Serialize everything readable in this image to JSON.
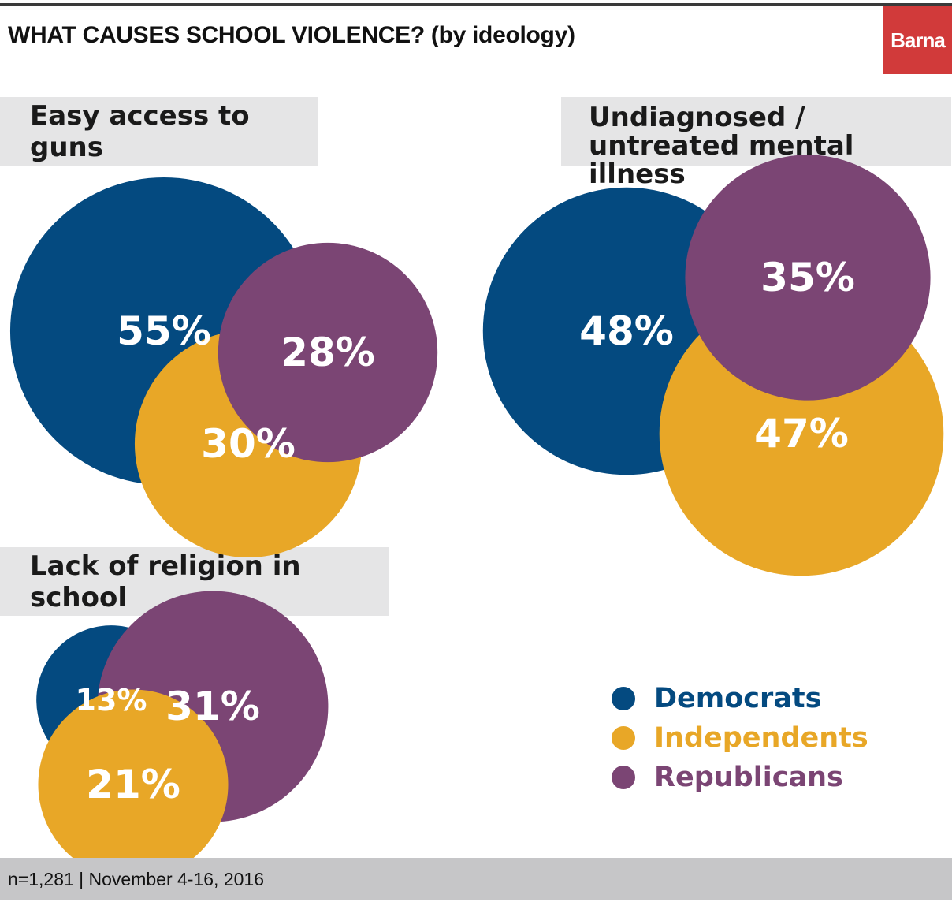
{
  "header": {
    "title": "WHAT CAUSES SCHOOL VIOLENCE?  (by ideology)",
    "logo": "Barna"
  },
  "footer": {
    "note": "n=1,281 | November 4-16, 2016"
  },
  "colors": {
    "Democrats": "#044a80",
    "Independents": "#e8a727",
    "Republicans": "#7b4574"
  },
  "legend": [
    {
      "label": "Democrats",
      "color": "#044a80"
    },
    {
      "label": "Independents",
      "color": "#e8a727"
    },
    {
      "label": "Republicans",
      "color": "#7b4574"
    }
  ],
  "chart_data": {
    "type": "bubble",
    "title": "WHAT CAUSES SCHOOL VIOLENCE?  (by ideology)",
    "series_names": [
      "Democrats",
      "Independents",
      "Republicans"
    ],
    "legend_position": "bottom-right",
    "groups": [
      {
        "label": "Easy access to guns",
        "values": {
          "Democrats": 55,
          "Independents": 30,
          "Republicans": 28
        }
      },
      {
        "label": "Undiagnosed / untreated mental illness",
        "values": {
          "Democrats": 48,
          "Independents": 47,
          "Republicans": 35
        }
      },
      {
        "label": "Lack of religion in school",
        "values": {
          "Democrats": 13,
          "Independents": 21,
          "Republicans": 31
        }
      }
    ]
  }
}
